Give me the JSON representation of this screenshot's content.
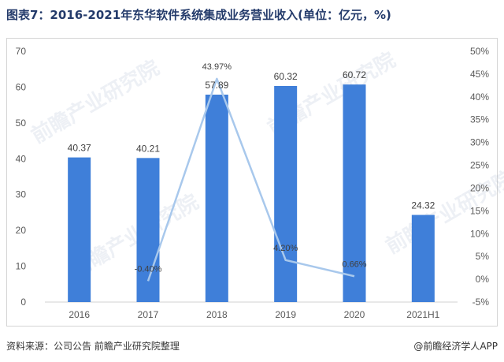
{
  "title": "图表7：2016-2021年东华软件系统集成业务营业收入(单位：亿元，%)",
  "footer": {
    "source": "资料来源：公司公告 前瞻产业研究院整理",
    "credit": "@前瞻经济学人APP"
  },
  "watermark": "前瞻产业研究院",
  "chart_data": {
    "type": "bar",
    "categories": [
      "2016",
      "2017",
      "2018",
      "2019",
      "2020",
      "2021H1"
    ],
    "series": [
      {
        "type": "bar",
        "values": [
          40.37,
          40.21,
          57.89,
          60.32,
          60.72,
          24.32
        ],
        "labels": [
          "40.37",
          "40.21",
          "57.89",
          "60.32",
          "60.72",
          "24.32"
        ],
        "color": "#3f7fd9"
      },
      {
        "type": "line",
        "axis": "right",
        "values": [
          null,
          -0.4,
          43.97,
          4.2,
          0.66,
          null
        ],
        "labels": [
          "",
          "-0.40%",
          "43.97%",
          "4.20%",
          "0.66%",
          ""
        ],
        "color": "#a8c8ec"
      }
    ],
    "y_left": {
      "min": 0,
      "max": 70,
      "ticks": [
        "0",
        "10",
        "20",
        "30",
        "40",
        "50",
        "60",
        "70"
      ]
    },
    "y_right": {
      "min": -5,
      "max": 50,
      "ticks": [
        "-5%",
        "0%",
        "5%",
        "10%",
        "15%",
        "20%",
        "25%",
        "30%",
        "35%",
        "40%",
        "45%",
        "50%"
      ]
    },
    "grid": false,
    "legend": "none"
  }
}
